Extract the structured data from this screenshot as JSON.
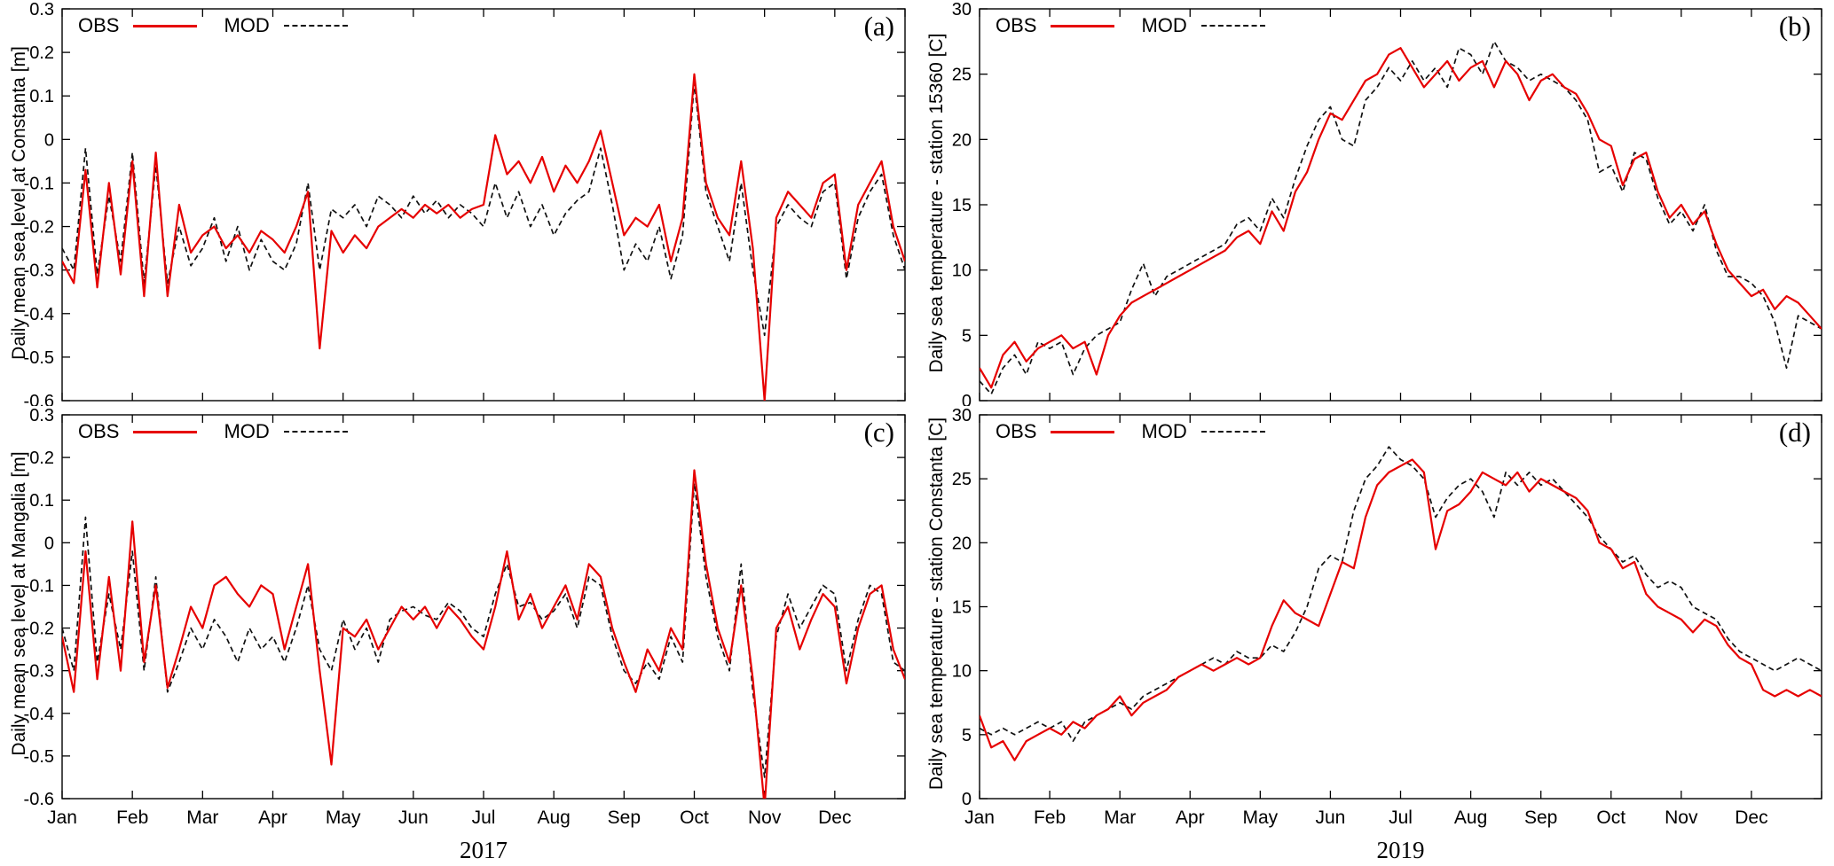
{
  "colors": {
    "obs": "#e60000",
    "mod": "#111111",
    "axis": "#000000",
    "background": "#ffffff"
  },
  "chart_data": [
    {
      "id": "a",
      "type": "line",
      "tag": "(a)",
      "ylabel": "Daily mean sea level at Constanta [m]",
      "xlabel_year": "2017",
      "show_x_labels": false,
      "show_year": false,
      "ylim": [
        -0.6,
        0.3
      ],
      "yticks": [
        -0.6,
        -0.5,
        -0.4,
        -0.3,
        -0.2,
        -0.1,
        0,
        0.1,
        0.2,
        0.3
      ],
      "ytick_labels": [
        "-0.6",
        "-0.5",
        "-0.4",
        "-0.3",
        "-0.2",
        "-0.1",
        "0",
        "0.1",
        "0.2",
        "0.3"
      ],
      "categories": [
        "Jan",
        "Feb",
        "Mar",
        "Apr",
        "May",
        "Jun",
        "Jul",
        "Aug",
        "Sep",
        "Oct",
        "Nov",
        "Dec"
      ],
      "legend_position": "top-left",
      "grid": false,
      "series": [
        {
          "name": "OBS",
          "color": "#e60000",
          "style": "solid",
          "values": [
            -0.28,
            -0.33,
            -0.07,
            -0.34,
            -0.1,
            -0.31,
            -0.05,
            -0.36,
            -0.03,
            -0.36,
            -0.15,
            -0.26,
            -0.22,
            -0.2,
            -0.25,
            -0.22,
            -0.26,
            -0.21,
            -0.23,
            -0.26,
            -0.2,
            -0.12,
            -0.48,
            -0.21,
            -0.26,
            -0.22,
            -0.25,
            -0.2,
            -0.18,
            -0.16,
            -0.18,
            -0.15,
            -0.17,
            -0.15,
            -0.18,
            -0.16,
            -0.15,
            0.01,
            -0.08,
            -0.05,
            -0.1,
            -0.04,
            -0.12,
            -0.06,
            -0.1,
            -0.05,
            0.02,
            -0.1,
            -0.22,
            -0.18,
            -0.2,
            -0.15,
            -0.28,
            -0.18,
            0.15,
            -0.1,
            -0.18,
            -0.22,
            -0.05,
            -0.25,
            -0.6,
            -0.18,
            -0.12,
            -0.15,
            -0.18,
            -0.1,
            -0.08,
            -0.3,
            -0.15,
            -0.1,
            -0.05,
            -0.2,
            -0.28
          ]
        },
        {
          "name": "MOD",
          "color": "#111111",
          "style": "dashed",
          "values": [
            -0.25,
            -0.3,
            -0.02,
            -0.31,
            -0.13,
            -0.28,
            -0.03,
            -0.33,
            -0.06,
            -0.33,
            -0.2,
            -0.29,
            -0.25,
            -0.18,
            -0.28,
            -0.2,
            -0.3,
            -0.23,
            -0.28,
            -0.3,
            -0.24,
            -0.1,
            -0.3,
            -0.16,
            -0.18,
            -0.15,
            -0.2,
            -0.13,
            -0.15,
            -0.18,
            -0.13,
            -0.17,
            -0.14,
            -0.18,
            -0.15,
            -0.17,
            -0.2,
            -0.1,
            -0.18,
            -0.12,
            -0.2,
            -0.15,
            -0.22,
            -0.17,
            -0.14,
            -0.12,
            -0.02,
            -0.15,
            -0.3,
            -0.24,
            -0.28,
            -0.2,
            -0.32,
            -0.22,
            0.13,
            -0.12,
            -0.2,
            -0.28,
            -0.1,
            -0.3,
            -0.45,
            -0.2,
            -0.15,
            -0.18,
            -0.2,
            -0.12,
            -0.1,
            -0.32,
            -0.18,
            -0.12,
            -0.08,
            -0.22,
            -0.3
          ]
        }
      ]
    },
    {
      "id": "b",
      "type": "line",
      "tag": "(b)",
      "ylabel": "Daily sea temperature - station 15360 [C]",
      "xlabel_year": "2019",
      "show_x_labels": false,
      "show_year": false,
      "ylim": [
        0,
        30
      ],
      "yticks": [
        0,
        5,
        10,
        15,
        20,
        25,
        30
      ],
      "ytick_labels": [
        "0",
        "5",
        "10",
        "15",
        "20",
        "25",
        "30"
      ],
      "categories": [
        "Jan",
        "Feb",
        "Mar",
        "Apr",
        "May",
        "Jun",
        "Jul",
        "Aug",
        "Sep",
        "Oct",
        "Nov",
        "Dec"
      ],
      "legend_position": "top-left",
      "grid": false,
      "series": [
        {
          "name": "OBS",
          "color": "#e60000",
          "style": "solid",
          "values": [
            2.5,
            1.0,
            3.5,
            4.5,
            3.0,
            4.0,
            4.5,
            5.0,
            4.0,
            4.5,
            2.0,
            5.0,
            6.5,
            7.5,
            8.0,
            8.5,
            9.0,
            9.5,
            10.0,
            10.5,
            11.0,
            11.5,
            12.5,
            13.0,
            12.0,
            14.5,
            13.0,
            16.0,
            17.5,
            20.0,
            22.0,
            21.5,
            23.0,
            24.5,
            25.0,
            26.5,
            27.0,
            25.5,
            24.0,
            25.0,
            26.0,
            24.5,
            25.5,
            26.0,
            24.0,
            26.0,
            25.0,
            23.0,
            24.5,
            25.0,
            24.0,
            23.5,
            22.0,
            20.0,
            19.5,
            16.5,
            18.5,
            19.0,
            16.0,
            14.0,
            15.0,
            13.5,
            14.5,
            12.0,
            10.0,
            9.0,
            8.0,
            8.5,
            7.0,
            8.0,
            7.5,
            6.5,
            5.5
          ]
        },
        {
          "name": "MOD",
          "color": "#111111",
          "style": "dashed",
          "values": [
            1.5,
            0.5,
            2.5,
            3.5,
            2.0,
            4.5,
            4.0,
            4.5,
            2.0,
            4.0,
            5.0,
            5.5,
            6.0,
            8.5,
            10.5,
            8.0,
            9.5,
            10.0,
            10.5,
            11.0,
            11.5,
            12.0,
            13.5,
            14.0,
            13.0,
            15.5,
            14.0,
            17.0,
            19.5,
            21.5,
            22.5,
            20.0,
            19.5,
            23.0,
            24.0,
            25.5,
            24.5,
            26.0,
            24.5,
            25.5,
            24.0,
            27.0,
            26.5,
            25.0,
            27.5,
            26.0,
            25.5,
            24.5,
            25.0,
            24.5,
            24.0,
            23.0,
            21.5,
            17.5,
            18.0,
            16.0,
            19.0,
            18.5,
            15.5,
            13.5,
            14.5,
            13.0,
            15.0,
            11.5,
            9.5,
            9.5,
            9.0,
            8.0,
            6.0,
            2.5,
            6.5,
            6.0,
            5.5
          ]
        }
      ]
    },
    {
      "id": "c",
      "type": "line",
      "tag": "(c)",
      "ylabel": "Daily mean sea level at Mangalia [m]",
      "xlabel_year": "2017",
      "show_x_labels": true,
      "show_year": true,
      "ylim": [
        -0.6,
        0.3
      ],
      "yticks": [
        -0.6,
        -0.5,
        -0.4,
        -0.3,
        -0.2,
        -0.1,
        0,
        0.1,
        0.2,
        0.3
      ],
      "ytick_labels": [
        "-0.6",
        "-0.5",
        "-0.4",
        "-0.3",
        "-0.2",
        "-0.1",
        "0",
        "0.1",
        "0.2",
        "0.3"
      ],
      "categories": [
        "Jan",
        "Feb",
        "Mar",
        "Apr",
        "May",
        "Jun",
        "Jul",
        "Aug",
        "Sep",
        "Oct",
        "Nov",
        "Dec"
      ],
      "legend_position": "top-left",
      "grid": false,
      "series": [
        {
          "name": "OBS",
          "color": "#e60000",
          "style": "solid",
          "values": [
            -0.22,
            -0.35,
            -0.02,
            -0.32,
            -0.08,
            -0.3,
            0.05,
            -0.28,
            -0.1,
            -0.34,
            -0.25,
            -0.15,
            -0.2,
            -0.1,
            -0.08,
            -0.12,
            -0.15,
            -0.1,
            -0.12,
            -0.25,
            -0.15,
            -0.05,
            -0.3,
            -0.52,
            -0.2,
            -0.22,
            -0.18,
            -0.25,
            -0.2,
            -0.15,
            -0.18,
            -0.15,
            -0.2,
            -0.15,
            -0.18,
            -0.22,
            -0.25,
            -0.15,
            -0.02,
            -0.18,
            -0.12,
            -0.2,
            -0.15,
            -0.1,
            -0.18,
            -0.05,
            -0.08,
            -0.2,
            -0.28,
            -0.35,
            -0.25,
            -0.3,
            -0.2,
            -0.25,
            0.17,
            -0.05,
            -0.2,
            -0.28,
            -0.1,
            -0.32,
            -0.62,
            -0.2,
            -0.15,
            -0.25,
            -0.18,
            -0.12,
            -0.15,
            -0.33,
            -0.2,
            -0.12,
            -0.1,
            -0.25,
            -0.32
          ]
        },
        {
          "name": "MOD",
          "color": "#111111",
          "style": "dashed",
          "values": [
            -0.2,
            -0.3,
            0.06,
            -0.28,
            -0.12,
            -0.25,
            -0.02,
            -0.3,
            -0.08,
            -0.35,
            -0.28,
            -0.2,
            -0.25,
            -0.18,
            -0.22,
            -0.28,
            -0.2,
            -0.25,
            -0.22,
            -0.28,
            -0.2,
            -0.1,
            -0.25,
            -0.3,
            -0.18,
            -0.25,
            -0.2,
            -0.28,
            -0.18,
            -0.16,
            -0.15,
            -0.17,
            -0.18,
            -0.14,
            -0.16,
            -0.2,
            -0.22,
            -0.12,
            -0.05,
            -0.15,
            -0.14,
            -0.18,
            -0.16,
            -0.12,
            -0.2,
            -0.08,
            -0.1,
            -0.22,
            -0.3,
            -0.33,
            -0.28,
            -0.32,
            -0.22,
            -0.28,
            0.14,
            -0.08,
            -0.22,
            -0.3,
            -0.05,
            -0.35,
            -0.55,
            -0.22,
            -0.12,
            -0.2,
            -0.15,
            -0.1,
            -0.12,
            -0.3,
            -0.18,
            -0.1,
            -0.12,
            -0.28,
            -0.3
          ]
        }
      ]
    },
    {
      "id": "d",
      "type": "line",
      "tag": "(d)",
      "ylabel": "Daily sea temperature - station Constanta [C]",
      "xlabel_year": "2019",
      "show_x_labels": true,
      "show_year": true,
      "ylim": [
        0,
        30
      ],
      "yticks": [
        0,
        5,
        10,
        15,
        20,
        25,
        30
      ],
      "ytick_labels": [
        "0",
        "5",
        "10",
        "15",
        "20",
        "25",
        "30"
      ],
      "categories": [
        "Jan",
        "Feb",
        "Mar",
        "Apr",
        "May",
        "Jun",
        "Jul",
        "Aug",
        "Sep",
        "Oct",
        "Nov",
        "Dec"
      ],
      "legend_position": "top-left",
      "grid": false,
      "series": [
        {
          "name": "OBS",
          "color": "#e60000",
          "style": "solid",
          "values": [
            6.5,
            4.0,
            4.5,
            3.0,
            4.5,
            5.0,
            5.5,
            5.0,
            6.0,
            5.5,
            6.5,
            7.0,
            8.0,
            6.5,
            7.5,
            8.0,
            8.5,
            9.5,
            10.0,
            10.5,
            10.0,
            10.5,
            11.0,
            10.5,
            11.0,
            13.5,
            15.5,
            14.5,
            14.0,
            13.5,
            16.0,
            18.5,
            18.0,
            22.0,
            24.5,
            25.5,
            26.0,
            26.5,
            25.5,
            19.5,
            22.5,
            23.0,
            24.0,
            25.5,
            25.0,
            24.5,
            25.5,
            24.0,
            25.0,
            24.5,
            24.0,
            23.5,
            22.5,
            20.0,
            19.5,
            18.0,
            18.5,
            16.0,
            15.0,
            14.5,
            14.0,
            13.0,
            14.0,
            13.5,
            12.0,
            11.0,
            10.5,
            8.5,
            8.0,
            8.5,
            8.0,
            8.5,
            8.0
          ]
        },
        {
          "name": "MOD",
          "color": "#111111",
          "style": "dashed",
          "values": [
            5.5,
            5.0,
            5.5,
            5.0,
            5.5,
            6.0,
            5.5,
            6.0,
            4.5,
            6.0,
            6.5,
            7.0,
            7.5,
            7.0,
            8.0,
            8.5,
            9.0,
            9.5,
            10.0,
            10.5,
            11.0,
            10.5,
            11.5,
            11.0,
            11.0,
            12.0,
            11.5,
            13.0,
            15.0,
            18.0,
            19.0,
            18.5,
            22.5,
            25.0,
            26.0,
            27.5,
            26.5,
            26.0,
            25.0,
            22.0,
            23.5,
            24.5,
            25.0,
            24.0,
            22.0,
            25.5,
            24.5,
            25.5,
            24.5,
            25.0,
            24.0,
            23.0,
            22.0,
            20.5,
            19.5,
            18.5,
            19.0,
            17.5,
            16.5,
            17.0,
            16.5,
            15.0,
            14.5,
            14.0,
            12.5,
            11.5,
            11.0,
            10.5,
            10.0,
            10.5,
            11.0,
            10.5,
            10.0
          ]
        }
      ]
    }
  ]
}
